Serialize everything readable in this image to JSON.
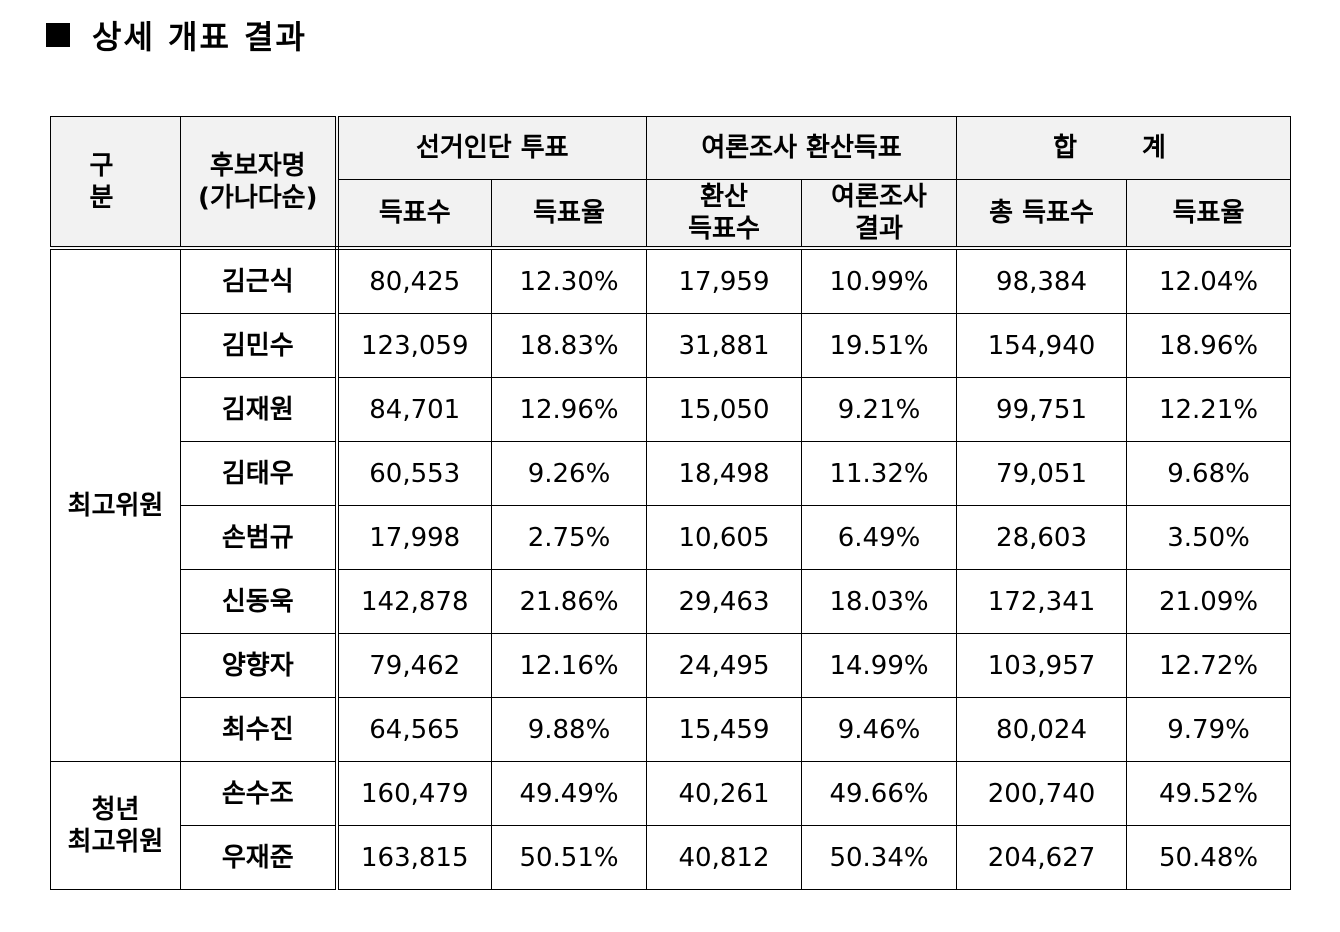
{
  "title": "상세 개표 결과",
  "headers": {
    "category": "구 분",
    "candidate_line1": "후보자명",
    "candidate_line2": "(가나다순)",
    "group1": "선거인단 투표",
    "group2": "여론조사 환산득표",
    "group3": "합 계",
    "g1_votes": "득표수",
    "g1_rate": "득표율",
    "g2_votes_line1": "환산",
    "g2_votes_line2": "득표수",
    "g2_result_line1": "여론조사",
    "g2_result_line2": "결과",
    "g3_votes": "총 득표수",
    "g3_rate": "득표율"
  },
  "groups": {
    "supreme": "최고위원",
    "youth_line1": "청년",
    "youth_line2": "최고위원"
  },
  "rows": [
    [
      "김근식",
      "80,425",
      "12.30%",
      "17,959",
      "10.99%",
      "98,384",
      "12.04%"
    ],
    [
      "김민수",
      "123,059",
      "18.83%",
      "31,881",
      "19.51%",
      "154,940",
      "18.96%"
    ],
    [
      "김재원",
      "84,701",
      "12.96%",
      "15,050",
      "9.21%",
      "99,751",
      "12.21%"
    ],
    [
      "김태우",
      "60,553",
      "9.26%",
      "18,498",
      "11.32%",
      "79,051",
      "9.68%"
    ],
    [
      "손범규",
      "17,998",
      "2.75%",
      "10,605",
      "6.49%",
      "28,603",
      "3.50%"
    ],
    [
      "신동욱",
      "142,878",
      "21.86%",
      "29,463",
      "18.03%",
      "172,341",
      "21.09%"
    ],
    [
      "양향자",
      "79,462",
      "12.16%",
      "24,495",
      "14.99%",
      "103,957",
      "12.72%"
    ],
    [
      "최수진",
      "64,565",
      "9.88%",
      "15,459",
      "9.46%",
      "80,024",
      "9.79%"
    ],
    [
      "손수조",
      "160,479",
      "49.49%",
      "40,261",
      "49.66%",
      "200,740",
      "49.52%"
    ],
    [
      "우재준",
      "163,815",
      "50.51%",
      "40,812",
      "50.34%",
      "204,627",
      "50.48%"
    ]
  ]
}
